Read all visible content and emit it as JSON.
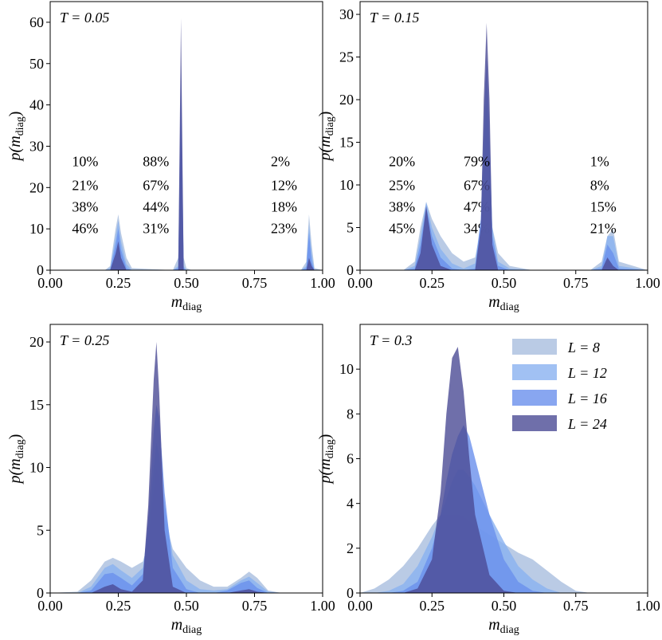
{
  "chart_data": [
    {
      "type": "area",
      "label": "T = 0.05",
      "xlabel": {
        "main": "m",
        "sub": "diag"
      },
      "ylabel": {
        "main": "p(m",
        "sub": "diag",
        "end": ")"
      },
      "xlim": [
        0,
        1
      ],
      "ylim": [
        0,
        65
      ],
      "xticks": [
        {
          "value": 0,
          "label": "0.00"
        },
        {
          "value": 0.25,
          "label": "0.25"
        },
        {
          "value": 0.5,
          "label": "0.50"
        },
        {
          "value": 0.75,
          "label": "0.75"
        },
        {
          "value": 1,
          "label": "1.00"
        }
      ],
      "yticks": [
        0,
        10,
        20,
        30,
        40,
        50,
        60
      ],
      "x": [
        0,
        0.2,
        0.22,
        0.24,
        0.25,
        0.26,
        0.28,
        0.3,
        0.45,
        0.47,
        0.475,
        0.48,
        0.485,
        0.49,
        0.5,
        0.52,
        0.92,
        0.94,
        0.95,
        0.96,
        0.97,
        1.0
      ],
      "series": [
        {
          "name": "L = 8",
          "color": "#a9bedf",
          "shares": [
            "46%",
            "31%",
            "23%"
          ],
          "values": [
            0,
            0,
            1,
            10,
            13.5,
            9,
            3,
            0.5,
            0,
            3,
            15,
            30,
            15,
            3,
            0.5,
            0,
            0,
            2,
            13.5,
            6,
            0.5,
            0
          ]
        },
        {
          "name": "L = 12",
          "color": "#8ab2f0",
          "shares": [
            "38%",
            "44%",
            "18%"
          ],
          "values": [
            0,
            0,
            0.5,
            8,
            12,
            7,
            1.5,
            0,
            0,
            1,
            20,
            40,
            20,
            1,
            0,
            0,
            0,
            1,
            11,
            4,
            0,
            0
          ]
        },
        {
          "name": "L = 16",
          "color": "#6a90ec",
          "shares": [
            "21%",
            "67%",
            "12%"
          ],
          "values": [
            0,
            0,
            0,
            6,
            10,
            5,
            0.5,
            0,
            0,
            0.5,
            25,
            50,
            25,
            0.5,
            0,
            0,
            0,
            0.5,
            9,
            2,
            0,
            0
          ]
        },
        {
          "name": "L = 24",
          "color": "#4b4b95",
          "shares": [
            "10%",
            "88%",
            "2%"
          ],
          "values": [
            0,
            0,
            0,
            4,
            7,
            3,
            0,
            0,
            0,
            0,
            30,
            61,
            30,
            0,
            0,
            0,
            0,
            0,
            3,
            1,
            0,
            0
          ]
        }
      ]
    },
    {
      "type": "area",
      "label": "T = 0.15",
      "xlabel": {
        "main": "m",
        "sub": "diag"
      },
      "ylabel": {
        "main": "p(m",
        "sub": "diag",
        "end": ")"
      },
      "xlim": [
        0,
        1
      ],
      "ylim": [
        0,
        31.5
      ],
      "xticks": [
        {
          "value": 0,
          "label": "0.00"
        },
        {
          "value": 0.25,
          "label": "0.25"
        },
        {
          "value": 0.5,
          "label": "0.50"
        },
        {
          "value": 0.75,
          "label": "0.75"
        },
        {
          "value": 1,
          "label": "1.00"
        }
      ],
      "yticks": [
        0,
        5,
        10,
        15,
        20,
        25,
        30
      ],
      "x": [
        0,
        0.15,
        0.19,
        0.21,
        0.23,
        0.25,
        0.28,
        0.32,
        0.36,
        0.4,
        0.42,
        0.43,
        0.44,
        0.45,
        0.46,
        0.48,
        0.52,
        0.6,
        0.8,
        0.84,
        0.86,
        0.88,
        0.9,
        1.0
      ],
      "series": [
        {
          "name": "L = 8",
          "color": "#a9bedf",
          "shares": [
            "45%",
            "34%",
            "21%"
          ],
          "values": [
            0,
            0,
            1,
            5,
            8,
            6,
            4,
            2,
            1,
            1.5,
            5,
            10,
            16,
            10,
            5,
            2,
            0.5,
            0,
            0,
            1,
            4,
            4.8,
            1,
            0
          ]
        },
        {
          "name": "L = 12",
          "color": "#8ab2f0",
          "shares": [
            "38%",
            "47%",
            "15%"
          ],
          "values": [
            0,
            0,
            0.5,
            4,
            8,
            5,
            2.5,
            0.8,
            0.2,
            0.8,
            6,
            14,
            20,
            14,
            5,
            1,
            0.2,
            0,
            0,
            0.5,
            4,
            4,
            0.5,
            0
          ]
        },
        {
          "name": "L = 16",
          "color": "#6a90ec",
          "shares": [
            "25%",
            "67%",
            "8%"
          ],
          "values": [
            0,
            0,
            0.2,
            3,
            7.5,
            4,
            1.5,
            0.2,
            0,
            0.2,
            6,
            17,
            25,
            17,
            4,
            0.5,
            0,
            0,
            0,
            0.2,
            3,
            2,
            0.2,
            0
          ]
        },
        {
          "name": "L = 24",
          "color": "#4b4b95",
          "shares": [
            "20%",
            "79%",
            "1%"
          ],
          "values": [
            0,
            0,
            0,
            2,
            7.5,
            3,
            0.5,
            0,
            0,
            0,
            5,
            20,
            29,
            20,
            3,
            0,
            0,
            0,
            0,
            0,
            1.5,
            0.5,
            0,
            0
          ]
        }
      ]
    },
    {
      "type": "area",
      "label": "T = 0.25",
      "xlabel": {
        "main": "m",
        "sub": "diag"
      },
      "ylabel": {
        "main": "p(m",
        "sub": "diag",
        "end": ")"
      },
      "xlim": [
        0,
        1
      ],
      "ylim": [
        0,
        21.4
      ],
      "xticks": [
        {
          "value": 0,
          "label": "0.00"
        },
        {
          "value": 0.25,
          "label": "0.25"
        },
        {
          "value": 0.5,
          "label": "0.50"
        },
        {
          "value": 0.75,
          "label": "0.75"
        },
        {
          "value": 1,
          "label": "1.00"
        }
      ],
      "yticks": [
        0,
        5,
        10,
        15,
        20
      ],
      "x": [
        0,
        0.1,
        0.15,
        0.2,
        0.23,
        0.26,
        0.3,
        0.34,
        0.36,
        0.38,
        0.39,
        0.4,
        0.42,
        0.45,
        0.5,
        0.55,
        0.6,
        0.65,
        0.7,
        0.73,
        0.76,
        0.8,
        0.85,
        1.0
      ],
      "series": [
        {
          "name": "L = 8",
          "color": "#a9bedf",
          "values": [
            0,
            0.1,
            1,
            2.5,
            2.8,
            2.5,
            2,
            2.5,
            4,
            8,
            10,
            9,
            6,
            3.5,
            2,
            1,
            0.5,
            0.5,
            1.2,
            1.7,
            1.2,
            0.2,
            0,
            0
          ]
        },
        {
          "name": "L = 12",
          "color": "#8ab2f0",
          "values": [
            0,
            0,
            0.5,
            2,
            2.3,
            1.8,
            1.2,
            2,
            5,
            10,
            12,
            11,
            7,
            3,
            1,
            0.3,
            0.2,
            0.3,
            1,
            1.3,
            0.8,
            0.1,
            0,
            0
          ]
        },
        {
          "name": "L = 16",
          "color": "#6a90ec",
          "values": [
            0,
            0,
            0.2,
            1.5,
            1.6,
            1.2,
            0.6,
            1.5,
            6,
            13,
            15,
            14,
            8,
            2,
            0.3,
            0,
            0,
            0.2,
            0.8,
            1,
            0.4,
            0,
            0,
            0
          ]
        },
        {
          "name": "L = 24",
          "color": "#4b4b95",
          "values": [
            0,
            0,
            0,
            0.5,
            0.7,
            0.3,
            0.1,
            1,
            7,
            17,
            20,
            16,
            5,
            0.5,
            0,
            0,
            0,
            0,
            0.2,
            0.3,
            0.1,
            0,
            0,
            0
          ]
        }
      ]
    },
    {
      "type": "area",
      "label": "T = 0.3",
      "legend": "upper right",
      "xlabel": {
        "main": "m",
        "sub": "diag"
      },
      "ylabel": {
        "main": "p(m",
        "sub": "diag",
        "end": ")"
      },
      "xlim": [
        0,
        1
      ],
      "ylim": [
        0,
        12
      ],
      "xticks": [
        {
          "value": 0,
          "label": "0.00"
        },
        {
          "value": 0.25,
          "label": "0.25"
        },
        {
          "value": 0.5,
          "label": "0.50"
        },
        {
          "value": 0.75,
          "label": "0.75"
        },
        {
          "value": 1,
          "label": "1.00"
        }
      ],
      "yticks": [
        0,
        2,
        4,
        6,
        8,
        10
      ],
      "x": [
        0,
        0.05,
        0.1,
        0.15,
        0.2,
        0.25,
        0.28,
        0.3,
        0.32,
        0.34,
        0.36,
        0.38,
        0.4,
        0.45,
        0.5,
        0.55,
        0.6,
        0.65,
        0.7,
        0.75,
        0.8,
        1.0
      ],
      "series": [
        {
          "name": "L = 8",
          "color": "#a9bedf",
          "values": [
            0,
            0.2,
            0.6,
            1.2,
            2,
            3,
            3.5,
            3.5,
            3.5,
            3.5,
            3.4,
            3.2,
            3,
            2.6,
            2.2,
            1.8,
            1.5,
            1,
            0.5,
            0.1,
            0,
            0
          ]
        },
        {
          "name": "L = 12",
          "color": "#8ab2f0",
          "values": [
            0,
            0,
            0.1,
            0.4,
            1.2,
            2.5,
            3.5,
            4.2,
            5,
            5.5,
            5.5,
            5.2,
            4.8,
            3.5,
            2.3,
            1.2,
            0.6,
            0.2,
            0,
            0,
            0,
            0
          ]
        },
        {
          "name": "L = 16",
          "color": "#6a90ec",
          "values": [
            0,
            0,
            0,
            0.1,
            0.5,
            2,
            3.5,
            5,
            6.2,
            7,
            7.5,
            7,
            6,
            3.5,
            1.5,
            0.5,
            0.1,
            0,
            0,
            0,
            0,
            0
          ]
        },
        {
          "name": "L = 24",
          "color": "#4b4b95",
          "values": [
            0,
            0,
            0,
            0,
            0.2,
            1.5,
            4.5,
            8,
            10.5,
            11,
            9,
            6,
            3.5,
            0.8,
            0.1,
            0,
            0,
            0,
            0,
            0,
            0,
            0
          ]
        }
      ]
    }
  ]
}
